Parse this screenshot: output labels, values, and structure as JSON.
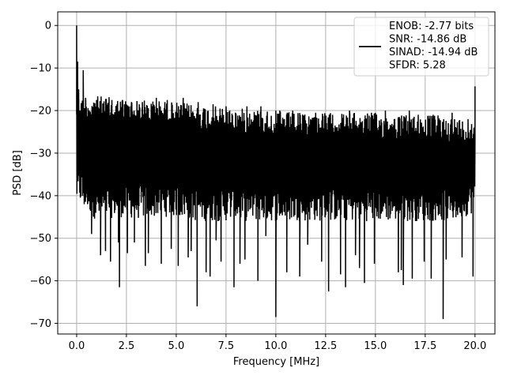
{
  "chart_data": {
    "type": "line",
    "xlabel": "Frequency [MHz]",
    "ylabel": "PSD [dB]",
    "xlim": [
      -0.95,
      21.0
    ],
    "ylim": [
      -72.5,
      3.2
    ],
    "grid": true,
    "legend_placement": "top-right",
    "line_color": "#000000",
    "x_ticks": [
      {
        "value": 0.0,
        "label": "0.0"
      },
      {
        "value": 2.5,
        "label": "2.5"
      },
      {
        "value": 5.0,
        "label": "5.0"
      },
      {
        "value": 7.5,
        "label": "7.5"
      },
      {
        "value": 10.0,
        "label": "10.0"
      },
      {
        "value": 12.5,
        "label": "12.5"
      },
      {
        "value": 15.0,
        "label": "15.0"
      },
      {
        "value": 17.5,
        "label": "17.5"
      },
      {
        "value": 20.0,
        "label": "20.0"
      }
    ],
    "y_ticks": [
      {
        "value": 0,
        "label": "0"
      },
      {
        "value": -10,
        "label": "−10"
      },
      {
        "value": -20,
        "label": "−20"
      },
      {
        "value": -30,
        "label": "−30"
      },
      {
        "value": -40,
        "label": "−40"
      },
      {
        "value": -50,
        "label": "−50"
      },
      {
        "value": -60,
        "label": "−60"
      },
      {
        "value": -70,
        "label": "−70"
      }
    ],
    "series": [
      {
        "x_range": [
          0.0,
          20.0
        ],
        "values": [
          [
            0.0,
            0.0
          ],
          [
            0.02,
            -27
          ],
          [
            0.05,
            -8.5
          ],
          [
            0.08,
            -30
          ],
          [
            0.1,
            -15
          ],
          [
            0.13,
            -34
          ],
          [
            0.17,
            -20
          ],
          [
            0.2,
            -38
          ],
          [
            0.25,
            -23
          ],
          [
            0.3,
            -40
          ],
          [
            0.33,
            -10.5
          ],
          [
            0.38,
            -42
          ],
          [
            0.45,
            -17
          ],
          [
            0.55,
            -42
          ],
          [
            0.75,
            -49
          ],
          [
            1.0,
            -17.5
          ],
          [
            1.2,
            -54
          ],
          [
            1.45,
            -53
          ],
          [
            1.7,
            -55.5
          ],
          [
            1.77,
            -17.5
          ],
          [
            2.1,
            -51
          ],
          [
            2.15,
            -61.5
          ],
          [
            2.3,
            -17.5
          ],
          [
            2.55,
            -53.5
          ],
          [
            2.75,
            -18
          ],
          [
            2.9,
            -51
          ],
          [
            3.3,
            -18
          ],
          [
            3.45,
            -56.5
          ],
          [
            3.6,
            -53.5
          ],
          [
            4.0,
            -17
          ],
          [
            4.25,
            -56
          ],
          [
            4.55,
            -17.5
          ],
          [
            4.75,
            -52.5
          ],
          [
            5.1,
            -56.5
          ],
          [
            5.35,
            -17
          ],
          [
            5.6,
            -54.5
          ],
          [
            5.75,
            -53
          ],
          [
            6.05,
            -66
          ],
          [
            6.1,
            -18
          ],
          [
            6.5,
            -58
          ],
          [
            6.7,
            -59
          ],
          [
            6.85,
            -18.5
          ],
          [
            7.0,
            -50.5
          ],
          [
            7.25,
            -55.5
          ],
          [
            7.5,
            -19
          ],
          [
            7.9,
            -61.5
          ],
          [
            8.2,
            -56
          ],
          [
            8.45,
            -55
          ],
          [
            8.55,
            -19
          ],
          [
            9.1,
            -60
          ],
          [
            9.25,
            -19
          ],
          [
            9.5,
            -49.5
          ],
          [
            10.0,
            -68.5
          ],
          [
            10.2,
            -20
          ],
          [
            10.55,
            -58
          ],
          [
            10.85,
            -20
          ],
          [
            11.2,
            -59
          ],
          [
            11.6,
            -51.5
          ],
          [
            12.0,
            -20.5
          ],
          [
            12.3,
            -55.5
          ],
          [
            12.65,
            -62.5
          ],
          [
            12.85,
            -21
          ],
          [
            13.25,
            -58.5
          ],
          [
            13.5,
            -61.5
          ],
          [
            13.7,
            -20
          ],
          [
            14.0,
            -54
          ],
          [
            14.2,
            -57
          ],
          [
            14.45,
            -60.5
          ],
          [
            14.8,
            -20.5
          ],
          [
            14.95,
            -56
          ],
          [
            15.5,
            -20
          ],
          [
            16.15,
            -58
          ],
          [
            16.3,
            -57.5
          ],
          [
            16.4,
            -61
          ],
          [
            16.7,
            -20
          ],
          [
            16.85,
            -59.5
          ],
          [
            17.15,
            -21
          ],
          [
            17.45,
            -55.5
          ],
          [
            17.8,
            -59.5
          ],
          [
            17.9,
            -21
          ],
          [
            18.4,
            -69
          ],
          [
            18.55,
            -55
          ],
          [
            18.85,
            -20.5
          ],
          [
            19.35,
            -54.5
          ],
          [
            19.65,
            -22
          ],
          [
            19.9,
            -59
          ],
          [
            19.95,
            -24
          ],
          [
            20.0,
            -14.3
          ]
        ]
      }
    ],
    "band": {
      "top": [
        [
          0.3,
          -17
        ],
        [
          1,
          -16.5
        ],
        [
          2,
          -17
        ],
        [
          3,
          -17.5
        ],
        [
          4,
          -17.5
        ],
        [
          5,
          -18
        ],
        [
          6,
          -18.5
        ],
        [
          7,
          -19
        ],
        [
          8,
          -19.5
        ],
        [
          9,
          -19.5
        ],
        [
          10,
          -20
        ],
        [
          11,
          -20.5
        ],
        [
          12,
          -20.5
        ],
        [
          13,
          -20.5
        ],
        [
          14,
          -20.5
        ],
        [
          15,
          -20.5
        ],
        [
          16,
          -21
        ],
        [
          17,
          -21
        ],
        [
          18,
          -21
        ],
        [
          19,
          -21.5
        ],
        [
          19.95,
          -22.5
        ]
      ],
      "bottom": [
        [
          0.3,
          -42
        ],
        [
          1,
          -46
        ],
        [
          2,
          -45
        ],
        [
          3,
          -45.5
        ],
        [
          4,
          -45
        ],
        [
          5,
          -45
        ],
        [
          6,
          -46
        ],
        [
          7,
          -46
        ],
        [
          8,
          -46
        ],
        [
          9,
          -46
        ],
        [
          10,
          -46
        ],
        [
          11,
          -46
        ],
        [
          12,
          -46
        ],
        [
          13,
          -46
        ],
        [
          14,
          -46
        ],
        [
          15,
          -46
        ],
        [
          16,
          -46
        ],
        [
          17,
          -46
        ],
        [
          18,
          -46
        ],
        [
          19,
          -46
        ],
        [
          19.95,
          -44
        ]
      ]
    },
    "legend": {
      "lines": [
        "ENOB: -2.77 bits",
        "SNR: -14.86 dB",
        "SINAD: -14.94 dB",
        "SFDR: 5.28"
      ]
    }
  }
}
